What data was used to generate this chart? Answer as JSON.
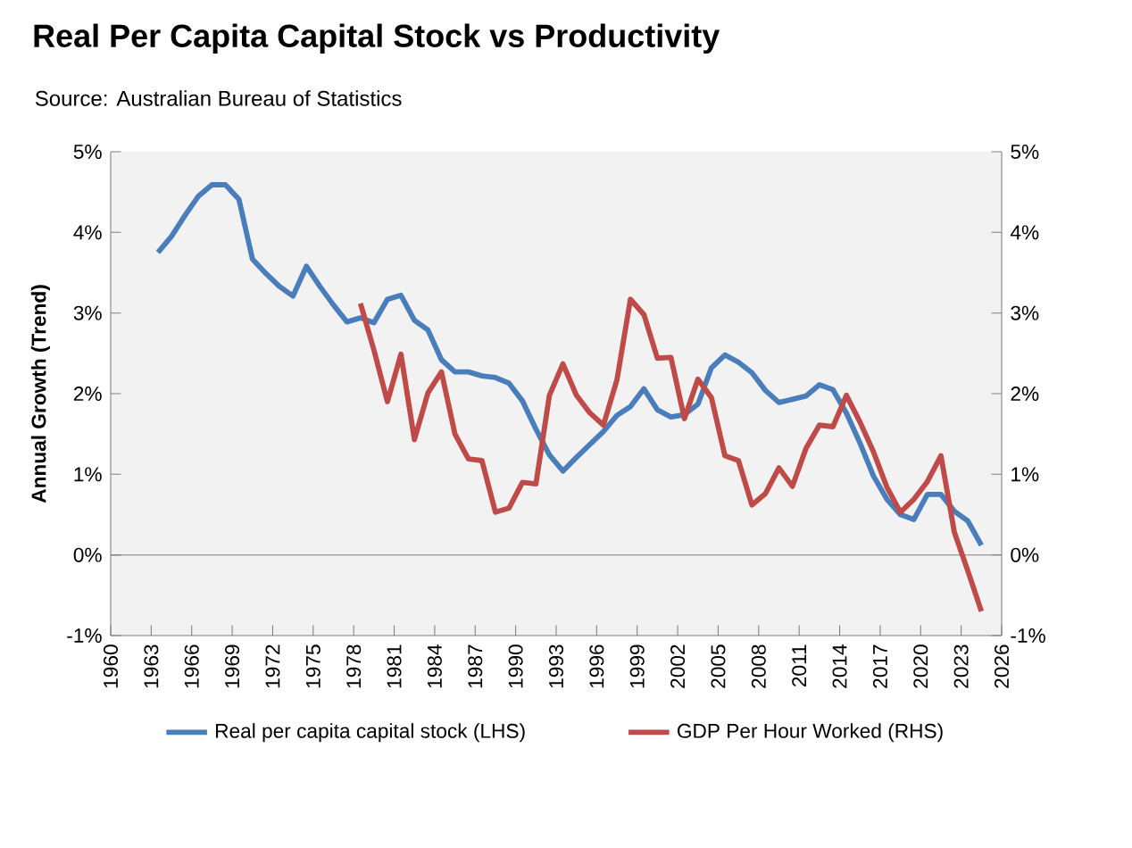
{
  "chart_data": {
    "type": "line",
    "title": "Real Per Capita Capital Stock vs Productivity",
    "subtitle": "Source: Australian Bureau of Statistics",
    "ylabel": "Annual Growth (Trend)",
    "series": [
      {
        "name": "Real per capita capital stock (LHS)",
        "color": "#4a7ebb",
        "axis": "y",
        "x": [
          1963.5,
          1964.5,
          1965.5,
          1966.5,
          1967.5,
          1968.5,
          1969.5,
          1970.5,
          1971.5,
          1972.5,
          1973.5,
          1974.5,
          1975.5,
          1976.5,
          1977.5,
          1978.5,
          1979.5,
          1980.5,
          1981.5,
          1982.5,
          1983.5,
          1984.5,
          1985.5,
          1986.5,
          1987.5,
          1988.5,
          1989.5,
          1990.5,
          1991.5,
          1992.5,
          1993.5,
          1994.5,
          1995.5,
          1996.5,
          1997.5,
          1998.5,
          1999.5,
          2000.5,
          2001.5,
          2002.5,
          2003.5,
          2004.5,
          2005.5,
          2006.5,
          2007.5,
          2008.5,
          2009.5,
          2010.5,
          2011.5,
          2012.5,
          2013.5,
          2014.5,
          2015.5,
          2016.5,
          2017.5,
          2018.5,
          2019.5,
          2020.5,
          2021.5,
          2022.5,
          2023.5,
          2024.5
        ],
        "values": [
          3.75,
          3.95,
          4.21,
          4.45,
          4.59,
          4.59,
          4.41,
          3.67,
          3.49,
          3.33,
          3.21,
          3.58,
          3.33,
          3.1,
          2.89,
          2.94,
          2.88,
          3.17,
          3.22,
          2.91,
          2.79,
          2.42,
          2.27,
          2.27,
          2.22,
          2.2,
          2.13,
          1.91,
          1.56,
          1.24,
          1.04,
          1.21,
          1.37,
          1.53,
          1.73,
          1.84,
          2.06,
          1.8,
          1.71,
          1.74,
          1.87,
          2.32,
          2.48,
          2.39,
          2.26,
          2.04,
          1.89,
          1.93,
          1.97,
          2.11,
          2.05,
          1.76,
          1.39,
          0.98,
          0.69,
          0.5,
          0.44,
          0.75,
          0.75,
          0.54,
          0.42,
          0.12
        ]
      },
      {
        "name": "GDP Per Hour Worked (RHS)",
        "color": "#be4b48",
        "axis": "y2",
        "x": [
          1978.5,
          1979.5,
          1980.5,
          1981.5,
          1982.5,
          1983.5,
          1984.5,
          1985.5,
          1986.5,
          1987.5,
          1988.5,
          1989.5,
          1990.5,
          1991.5,
          1992.5,
          1993.5,
          1994.5,
          1995.5,
          1996.5,
          1997.5,
          1998.5,
          1999.5,
          2000.5,
          2001.5,
          2002.5,
          2003.5,
          2004.5,
          2005.5,
          2006.5,
          2007.5,
          2008.5,
          2009.5,
          2010.5,
          2011.5,
          2012.5,
          2013.5,
          2014.5,
          2015.5,
          2016.5,
          2017.5,
          2018.5,
          2019.5,
          2020.5,
          2021.5,
          2022.5,
          2023.5,
          2024.5
        ],
        "values": [
          3.12,
          2.54,
          1.9,
          2.49,
          1.43,
          2.01,
          2.27,
          1.5,
          1.19,
          1.17,
          0.53,
          0.58,
          0.9,
          0.88,
          1.98,
          2.37,
          1.98,
          1.76,
          1.61,
          2.17,
          3.17,
          2.98,
          2.44,
          2.45,
          1.69,
          2.18,
          1.95,
          1.23,
          1.17,
          0.62,
          0.76,
          1.08,
          0.85,
          1.32,
          1.61,
          1.59,
          1.98,
          1.65,
          1.28,
          0.84,
          0.53,
          0.69,
          0.91,
          1.23,
          0.28,
          -0.2,
          -0.7
        ]
      }
    ],
    "xlim": [
      1960,
      2026
    ],
    "xticks": [
      1960,
      1963,
      1966,
      1969,
      1972,
      1975,
      1978,
      1981,
      1984,
      1987,
      1990,
      1993,
      1996,
      1999,
      2002,
      2005,
      2008,
      2011,
      2014,
      2017,
      2020,
      2023,
      2026
    ],
    "ylim": [
      -1,
      5
    ],
    "yticks": [
      {
        "value": -1,
        "label": "-1%"
      },
      {
        "value": 0,
        "label": "0%"
      },
      {
        "value": 1,
        "label": "1%"
      },
      {
        "value": 2,
        "label": "2%"
      },
      {
        "value": 3,
        "label": "3%"
      },
      {
        "value": 4,
        "label": "4%"
      },
      {
        "value": 5,
        "label": "5%"
      }
    ],
    "y2lim": [
      -1,
      5
    ],
    "y2ticks": [
      {
        "value": -1,
        "label": "-1%"
      },
      {
        "value": 0,
        "label": "0%"
      },
      {
        "value": 1,
        "label": "1%"
      },
      {
        "value": 2,
        "label": "2%"
      },
      {
        "value": 3,
        "label": "3%"
      },
      {
        "value": 4,
        "label": "4%"
      },
      {
        "value": 5,
        "label": "5%"
      }
    ],
    "legend": "bottom",
    "line_style": "solid"
  }
}
